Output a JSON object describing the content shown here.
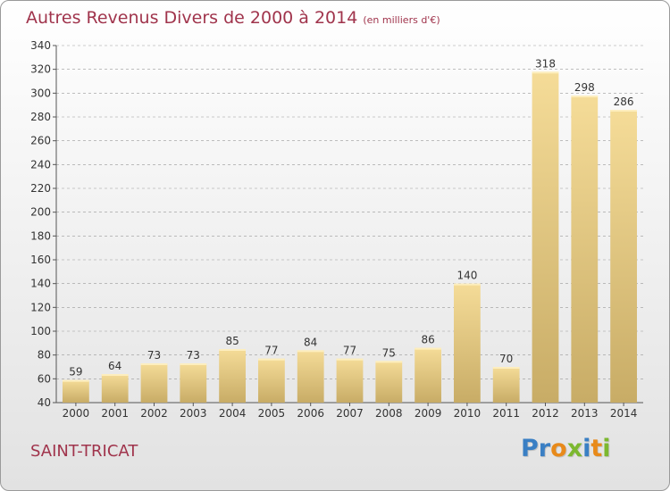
{
  "title": "Autres Revenus Divers de 2000 à 2014",
  "unit": "(en milliers d'€)",
  "commune": "SAINT-TRICAT",
  "logo": {
    "letters": [
      {
        "ch": "P",
        "color": "#3a7fc4"
      },
      {
        "ch": "r",
        "color": "#3a7fc4"
      },
      {
        "ch": "o",
        "color": "#e88a1a"
      },
      {
        "ch": "x",
        "color": "#7cb82f"
      },
      {
        "ch": "i",
        "color": "#3a7fc4"
      },
      {
        "ch": "t",
        "color": "#e88a1a"
      },
      {
        "ch": "i",
        "color": "#7cb82f"
      }
    ]
  },
  "colors": {
    "title": "#a0344c",
    "bar_light": "#f5dc98",
    "bar_dark": "#c8ac66",
    "grid": "#999999"
  },
  "chart_data": {
    "type": "bar",
    "categories": [
      "2000",
      "2001",
      "2002",
      "2003",
      "2004",
      "2005",
      "2006",
      "2007",
      "2008",
      "2009",
      "2010",
      "2011",
      "2012",
      "2013",
      "2014"
    ],
    "values": [
      59,
      64,
      73,
      73,
      85,
      77,
      84,
      77,
      75,
      86,
      140,
      70,
      318,
      298,
      286
    ],
    "ylim": [
      40,
      340
    ],
    "yticks": [
      40,
      60,
      80,
      100,
      120,
      140,
      160,
      180,
      200,
      220,
      240,
      260,
      280,
      300,
      320,
      340
    ],
    "grid": true
  }
}
